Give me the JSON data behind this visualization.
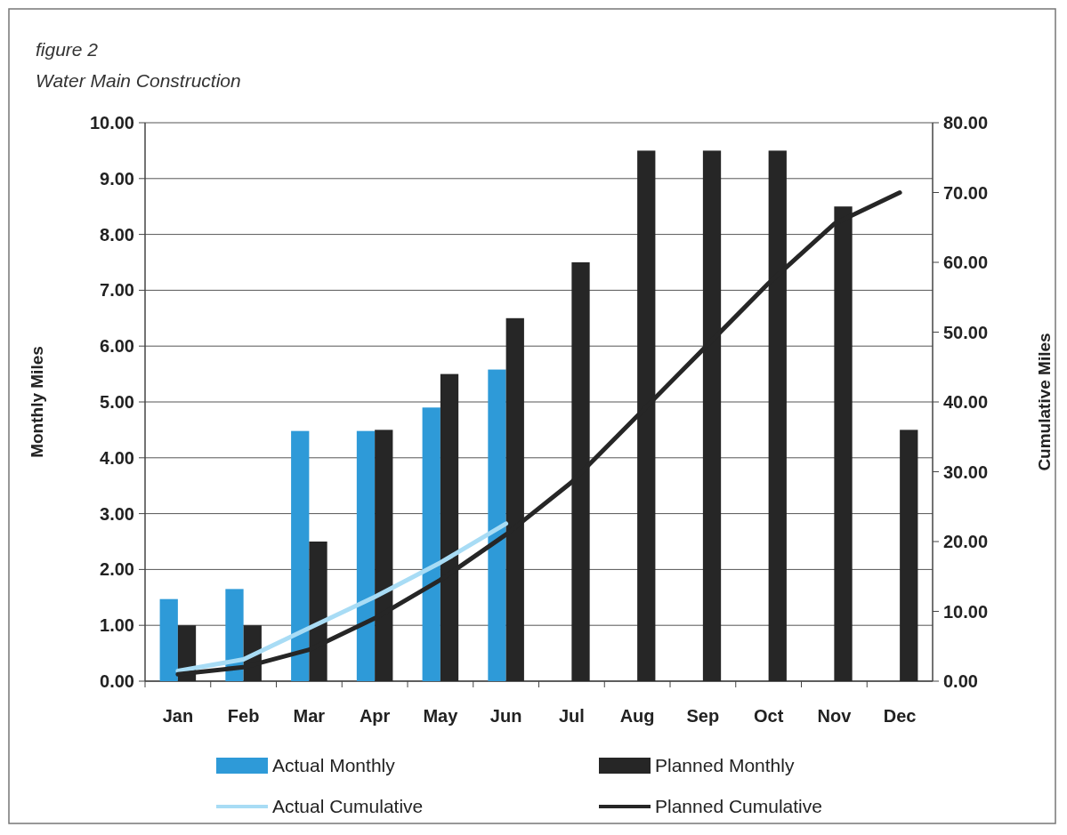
{
  "chart_data": {
    "type": "bar",
    "title": "figure 2",
    "subtitle": "Water Main Construction",
    "ylabel": "Monthly Miles",
    "y2label": "Cumulative Miles",
    "categories": [
      "Jan",
      "Feb",
      "Mar",
      "Apr",
      "May",
      "Jun",
      "Jul",
      "Aug",
      "Sep",
      "Oct",
      "Nov",
      "Dec"
    ],
    "series": [
      {
        "name": "Actual Monthly",
        "color": "#2e9ad8",
        "values": [
          1.47,
          1.65,
          4.48,
          4.48,
          4.9,
          5.58,
          null,
          null,
          null,
          null,
          null,
          null
        ]
      },
      {
        "name": "Planned Monthly",
        "color": "#262626",
        "values": [
          1,
          1,
          2.5,
          4.5,
          5.5,
          6.5,
          7.5,
          9.5,
          9.5,
          9.5,
          8.5,
          4.5
        ]
      },
      {
        "name": "Actual Cumulative",
        "type": "line",
        "axis": "y2",
        "color": "#a8dcf5",
        "values": [
          1.47,
          3.12,
          7.6,
          12.08,
          16.98,
          22.56,
          null,
          null,
          null,
          null,
          null,
          null
        ]
      },
      {
        "name": "Planned Cumulative",
        "type": "line",
        "axis": "y2",
        "color": "#262626",
        "values": [
          1,
          2,
          4.5,
          9,
          14.5,
          21,
          28.5,
          38,
          47.5,
          57,
          65.5,
          70
        ]
      }
    ],
    "ylim": [
      0,
      10
    ],
    "yticks": [
      {
        "value": 0,
        "label": "0.00"
      },
      {
        "value": 1,
        "label": "1.00"
      },
      {
        "value": 2,
        "label": "2.00"
      },
      {
        "value": 3,
        "label": "3.00"
      },
      {
        "value": 4,
        "label": "4.00"
      },
      {
        "value": 5,
        "label": "5.00"
      },
      {
        "value": 6,
        "label": "6.00"
      },
      {
        "value": 7,
        "label": "7.00"
      },
      {
        "value": 8,
        "label": "8.00"
      },
      {
        "value": 9,
        "label": "9.00"
      },
      {
        "value": 10,
        "label": "10.00"
      }
    ],
    "y2lim": [
      0,
      80
    ],
    "y2ticks": [
      {
        "value": 0,
        "label": "0.00"
      },
      {
        "value": 10,
        "label": "10.00"
      },
      {
        "value": 20,
        "label": "20.00"
      },
      {
        "value": 30,
        "label": "30.00"
      },
      {
        "value": 40,
        "label": "40.00"
      },
      {
        "value": 50,
        "label": "50.00"
      },
      {
        "value": 60,
        "label": "60.00"
      },
      {
        "value": 70,
        "label": "70.00"
      },
      {
        "value": 80,
        "label": "80.00"
      }
    ],
    "grid": "y",
    "legend": "bottom"
  }
}
